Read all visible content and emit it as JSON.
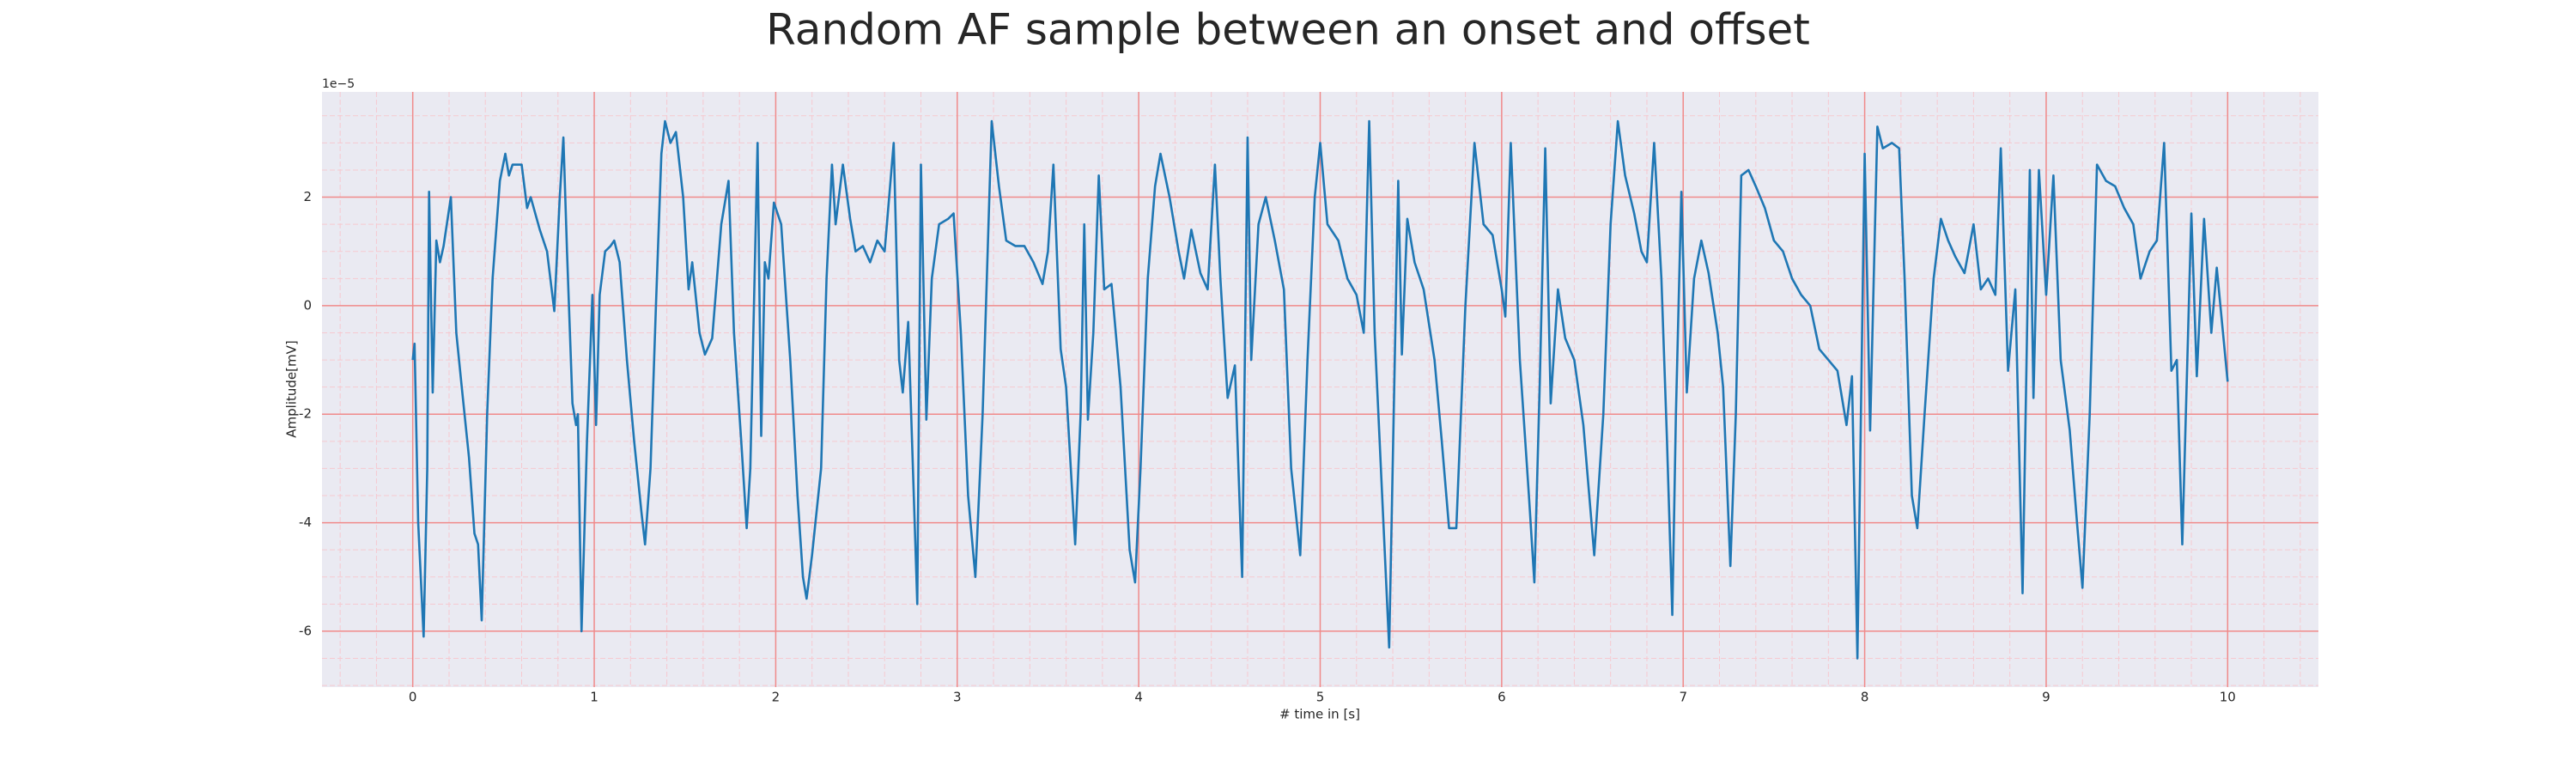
{
  "chart_data": {
    "type": "line",
    "title": "Random AF sample between an onset and offset",
    "xlabel": "# time in [s]",
    "ylabel": "Amplitude[mV]",
    "y_offset_label": "1e−5",
    "color": "#1f77b4",
    "background": "#eaeaf2",
    "grid": true,
    "grid_color": "#f08a8a",
    "minor_grid_color": "#f6c9d0",
    "xlim": [
      -0.5,
      10.5
    ],
    "ylim": [
      -7.03,
      3.94
    ],
    "xticks": [
      0,
      1,
      2,
      3,
      4,
      5,
      6,
      7,
      8,
      9,
      10
    ],
    "yticks": [
      -6,
      -4,
      -2,
      0,
      2
    ],
    "xminorticks": [
      -0.4,
      -0.2,
      0.2,
      0.4,
      0.6,
      0.8,
      1.2,
      1.4,
      1.6,
      1.8,
      2.2,
      2.4,
      2.6,
      2.8,
      3.2,
      3.4,
      3.6,
      3.8,
      4.2,
      4.4,
      4.6,
      4.8,
      5.2,
      5.4,
      5.6,
      5.8,
      6.2,
      6.4,
      6.6,
      6.8,
      7.2,
      7.4,
      7.6,
      7.8,
      8.2,
      8.4,
      8.6,
      8.8,
      9.2,
      9.4,
      9.6,
      9.8,
      10.2,
      10.4
    ],
    "yminorticks": [
      -7,
      -6.5,
      -5.5,
      -5,
      -4.5,
      -3.5,
      -3,
      -2.5,
      -1.5,
      -1,
      -0.5,
      0.5,
      1,
      1.5,
      2.5,
      3,
      3.5
    ],
    "x": [
      0,
      0.01,
      0.03,
      0.06,
      0.08,
      0.09,
      0.11,
      0.13,
      0.15,
      0.17,
      0.21,
      0.24,
      0.27,
      0.31,
      0.34,
      0.36,
      0.38,
      0.41,
      0.44,
      0.48,
      0.51,
      0.53,
      0.55,
      0.6,
      0.63,
      0.65,
      0.7,
      0.74,
      0.78,
      0.81,
      0.83,
      0.85,
      0.88,
      0.9,
      0.91,
      0.93,
      0.96,
      0.99,
      1.01,
      1.03,
      1.06,
      1.09,
      1.11,
      1.14,
      1.18,
      1.22,
      1.26,
      1.28,
      1.31,
      1.34,
      1.37,
      1.39,
      1.42,
      1.45,
      1.49,
      1.52,
      1.54,
      1.58,
      1.61,
      1.65,
      1.7,
      1.74,
      1.77,
      1.81,
      1.84,
      1.86,
      1.9,
      1.92,
      1.94,
      1.96,
      1.99,
      2.03,
      2.08,
      2.12,
      2.15,
      2.17,
      2.2,
      2.25,
      2.28,
      2.31,
      2.33,
      2.37,
      2.41,
      2.44,
      2.48,
      2.52,
      2.56,
      2.6,
      2.65,
      2.68,
      2.7,
      2.73,
      2.78,
      2.8,
      2.83,
      2.86,
      2.9,
      2.95,
      2.98,
      3.02,
      3.06,
      3.1,
      3.14,
      3.19,
      3.23,
      3.27,
      3.32,
      3.37,
      3.42,
      3.47,
      3.5,
      3.53,
      3.57,
      3.6,
      3.65,
      3.68,
      3.7,
      3.72,
      3.75,
      3.78,
      3.81,
      3.85,
      3.9,
      3.95,
      3.98,
      4.01,
      4.05,
      4.09,
      4.12,
      4.17,
      4.22,
      4.25,
      4.29,
      4.34,
      4.38,
      4.42,
      4.45,
      4.49,
      4.53,
      4.57,
      4.6,
      4.62,
      4.66,
      4.7,
      4.75,
      4.8,
      4.84,
      4.89,
      4.93,
      4.97,
      5.0,
      5.04,
      5.1,
      5.15,
      5.2,
      5.24,
      5.27,
      5.3,
      5.34,
      5.38,
      5.43,
      5.45,
      5.48,
      5.52,
      5.57,
      5.63,
      5.67,
      5.71,
      5.75,
      5.8,
      5.85,
      5.9,
      5.95,
      6.0,
      6.02,
      6.05,
      6.1,
      6.15,
      6.18,
      6.21,
      6.24,
      6.27,
      6.31,
      6.35,
      6.4,
      6.45,
      6.51,
      6.56,
      6.6,
      6.64,
      6.68,
      6.73,
      6.77,
      6.8,
      6.84,
      6.88,
      6.91,
      6.94,
      6.96,
      6.99,
      7.02,
      7.06,
      7.1,
      7.14,
      7.19,
      7.22,
      7.26,
      7.29,
      7.32,
      7.36,
      7.4,
      7.45,
      7.5,
      7.55,
      7.6,
      7.65,
      7.7,
      7.75,
      7.8,
      7.85,
      7.9,
      7.93,
      7.96,
      8.0,
      8.03,
      8.07,
      8.1,
      8.15,
      8.19,
      8.22,
      8.26,
      8.29,
      8.33,
      8.38,
      8.42,
      8.46,
      8.5,
      8.55,
      8.6,
      8.64,
      8.68,
      8.72,
      8.75,
      8.79,
      8.83,
      8.87,
      8.91,
      8.93,
      8.96,
      9.0,
      9.04,
      9.08,
      9.13,
      9.17,
      9.2,
      9.24,
      9.28,
      9.33,
      9.38,
      9.43,
      9.48,
      9.52,
      9.57,
      9.61,
      9.65,
      9.69,
      9.72,
      9.75,
      9.8,
      9.83,
      9.87,
      9.91,
      9.94,
      10.0
    ],
    "values": [
      -1,
      -0.7,
      -4,
      -6.1,
      -3,
      2.1,
      -1.6,
      1.2,
      0.8,
      1.1,
      2.0,
      -0.5,
      -1.5,
      -2.8,
      -4.2,
      -4.4,
      -5.8,
      -2,
      0.5,
      2.3,
      2.8,
      2.4,
      2.6,
      2.6,
      1.8,
      2.0,
      1.4,
      1.0,
      -0.1,
      2.0,
      3.1,
      1,
      -1.8,
      -2.2,
      -2.0,
      -6.0,
      -2.5,
      0.2,
      -2.2,
      0.2,
      1.0,
      1.1,
      1.2,
      0.8,
      -1.0,
      -2.5,
      -3.8,
      -4.4,
      -3,
      0,
      2.8,
      3.4,
      3.0,
      3.2,
      2.0,
      0.3,
      0.8,
      -0.5,
      -0.9,
      -0.6,
      1.5,
      2.3,
      -0.5,
      -2.5,
      -4.1,
      -3.0,
      3.0,
      -2.4,
      0.8,
      0.5,
      1.9,
      1.5,
      -1,
      -3.5,
      -5.0,
      -5.4,
      -4.6,
      -3,
      0.5,
      2.6,
      1.5,
      2.6,
      1.6,
      1.0,
      1.1,
      0.8,
      1.2,
      1.0,
      3.0,
      -1.0,
      -1.6,
      -0.3,
      -5.5,
      2.6,
      -2.1,
      0.5,
      1.5,
      1.6,
      1.7,
      -0.5,
      -3.5,
      -5.0,
      -2.0,
      3.4,
      2.2,
      1.2,
      1.1,
      1.1,
      0.8,
      0.4,
      1.0,
      2.6,
      -0.8,
      -1.5,
      -4.4,
      -2,
      1.5,
      -2.1,
      -0.5,
      2.4,
      0.3,
      0.4,
      -1.5,
      -4.5,
      -5.1,
      -3,
      0.5,
      2.2,
      2.8,
      2.0,
      1.0,
      0.5,
      1.4,
      0.6,
      0.3,
      2.6,
      0.5,
      -1.7,
      -1.1,
      -5.0,
      3.1,
      -1.0,
      1.5,
      2.0,
      1.2,
      0.3,
      -3.0,
      -4.6,
      -1.0,
      2.0,
      3.0,
      1.5,
      1.2,
      0.5,
      0.2,
      -0.5,
      3.4,
      -0.5,
      -3.4,
      -6.3,
      2.3,
      -0.9,
      1.6,
      0.8,
      0.3,
      -1.0,
      -2.5,
      -4.1,
      -4.1,
      0.0,
      3.0,
      1.5,
      1.3,
      0.3,
      -0.2,
      3.0,
      -1.0,
      -3.5,
      -5.1,
      -1.4,
      2.9,
      -1.8,
      0.3,
      -0.6,
      -1.0,
      -2.2,
      -4.6,
      -2,
      1.5,
      3.4,
      2.4,
      1.7,
      1.0,
      0.8,
      3.0,
      0.5,
      -2.4,
      -5.7,
      -2,
      2.1,
      -1.6,
      0.5,
      1.2,
      0.6,
      -0.5,
      -1.5,
      -4.8,
      -2,
      2.4,
      2.5,
      2.2,
      1.8,
      1.2,
      1.0,
      0.5,
      0.2,
      0.0,
      -0.8,
      -1.0,
      -1.2,
      -2.2,
      -1.3,
      -6.5,
      2.8,
      -2.3,
      3.3,
      2.9,
      3.0,
      2.9,
      0.5,
      -3.5,
      -4.1,
      -2,
      0.5,
      1.6,
      1.2,
      0.9,
      0.6,
      1.5,
      0.3,
      0.5,
      0.2,
      2.9,
      -1.2,
      0.3,
      -5.3,
      2.5,
      -1.7,
      2.5,
      0.2,
      2.4,
      -1.0,
      -2.3,
      -4.0,
      -5.2,
      -2,
      2.6,
      2.3,
      2.2,
      1.8,
      1.5,
      0.5,
      1.0,
      1.2,
      3.0,
      -1.2,
      -1.0,
      -4.4,
      1.7,
      -1.3,
      1.6,
      -0.5,
      0.7,
      -1.4
    ]
  }
}
